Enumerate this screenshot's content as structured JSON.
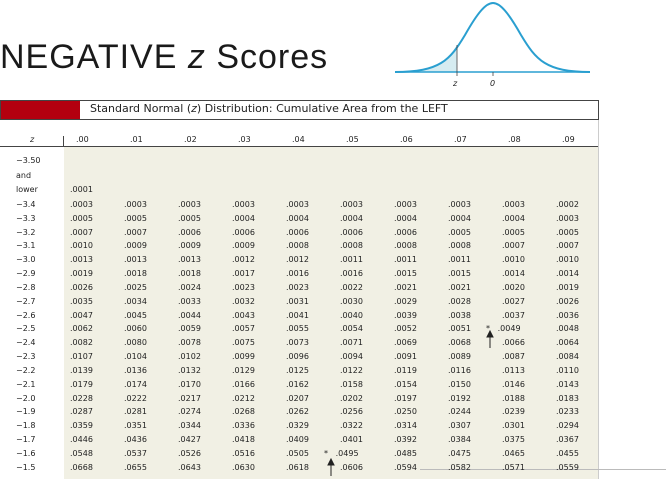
{
  "title": {
    "prefix": "NEGATIVE",
    "variable": "z",
    "suffix": "Scores"
  },
  "curve": {
    "z_label": "z",
    "zero_label": "0"
  },
  "table": {
    "caption": [
      "Standard Normal (",
      "z",
      ") Distribution: Cumulative Area from the LEFT"
    ],
    "headers": [
      "z",
      ".00",
      ".01",
      ".02",
      ".03",
      ".04",
      ".05",
      ".06",
      ".07",
      ".08",
      ".09"
    ],
    "rows": [
      {
        "z": [
          "−3.50",
          "and",
          "lower"
        ],
        "cells": [
          ".0001"
        ]
      },
      {
        "z": "−3.4",
        "cells": [
          ".0003",
          ".0003",
          ".0003",
          ".0003",
          ".0003",
          ".0003",
          ".0003",
          ".0003",
          ".0003",
          ".0002"
        ]
      },
      {
        "z": "−3.3",
        "cells": [
          ".0005",
          ".0005",
          ".0005",
          ".0004",
          ".0004",
          ".0004",
          ".0004",
          ".0004",
          ".0004",
          ".0003"
        ]
      },
      {
        "z": "−3.2",
        "cells": [
          ".0007",
          ".0007",
          ".0006",
          ".0006",
          ".0006",
          ".0006",
          ".0006",
          ".0005",
          ".0005",
          ".0005"
        ]
      },
      {
        "z": "−3.1",
        "cells": [
          ".0010",
          ".0009",
          ".0009",
          ".0009",
          ".0008",
          ".0008",
          ".0008",
          ".0008",
          ".0007",
          ".0007"
        ]
      },
      {
        "z": "−3.0",
        "cells": [
          ".0013",
          ".0013",
          ".0013",
          ".0012",
          ".0012",
          ".0011",
          ".0011",
          ".0011",
          ".0010",
          ".0010"
        ]
      },
      {
        "z": "−2.9",
        "cells": [
          ".0019",
          ".0018",
          ".0018",
          ".0017",
          ".0016",
          ".0016",
          ".0015",
          ".0015",
          ".0014",
          ".0014"
        ]
      },
      {
        "z": "−2.8",
        "cells": [
          ".0026",
          ".0025",
          ".0024",
          ".0023",
          ".0023",
          ".0022",
          ".0021",
          ".0021",
          ".0020",
          ".0019"
        ]
      },
      {
        "z": "−2.7",
        "cells": [
          ".0035",
          ".0034",
          ".0033",
          ".0032",
          ".0031",
          ".0030",
          ".0029",
          ".0028",
          ".0027",
          ".0026"
        ]
      },
      {
        "z": "−2.6",
        "cells": [
          ".0047",
          ".0045",
          ".0044",
          ".0043",
          ".0041",
          ".0040",
          ".0039",
          ".0038",
          ".0037",
          ".0036"
        ]
      },
      {
        "z": "−2.5",
        "cells": [
          ".0062",
          ".0060",
          ".0059",
          ".0057",
          ".0055",
          ".0054",
          ".0052",
          ".0051",
          "*   .0049",
          ".0048"
        ]
      },
      {
        "z": "−2.4",
        "cells": [
          ".0082",
          ".0080",
          ".0078",
          ".0075",
          ".0073",
          ".0071",
          ".0069",
          ".0068",
          ".0066",
          ".0064"
        ]
      },
      {
        "z": "−2.3",
        "cells": [
          ".0107",
          ".0104",
          ".0102",
          ".0099",
          ".0096",
          ".0094",
          ".0091",
          ".0089",
          ".0087",
          ".0084"
        ]
      },
      {
        "z": "−2.2",
        "cells": [
          ".0139",
          ".0136",
          ".0132",
          ".0129",
          ".0125",
          ".0122",
          ".0119",
          ".0116",
          ".0113",
          ".0110"
        ]
      },
      {
        "z": "−2.1",
        "cells": [
          ".0179",
          ".0174",
          ".0170",
          ".0166",
          ".0162",
          ".0158",
          ".0154",
          ".0150",
          ".0146",
          ".0143"
        ]
      },
      {
        "z": "−2.0",
        "cells": [
          ".0228",
          ".0222",
          ".0217",
          ".0212",
          ".0207",
          ".0202",
          ".0197",
          ".0192",
          ".0188",
          ".0183"
        ]
      },
      {
        "z": "−1.9",
        "cells": [
          ".0287",
          ".0281",
          ".0274",
          ".0268",
          ".0262",
          ".0256",
          ".0250",
          ".0244",
          ".0239",
          ".0233"
        ]
      },
      {
        "z": "−1.8",
        "cells": [
          ".0359",
          ".0351",
          ".0344",
          ".0336",
          ".0329",
          ".0322",
          ".0314",
          ".0307",
          ".0301",
          ".0294"
        ]
      },
      {
        "z": "−1.7",
        "cells": [
          ".0446",
          ".0436",
          ".0427",
          ".0418",
          ".0409",
          ".0401",
          ".0392",
          ".0384",
          ".0375",
          ".0367"
        ]
      },
      {
        "z": "−1.6",
        "cells": [
          ".0548",
          ".0537",
          ".0526",
          ".0516",
          ".0505",
          "*   .0495",
          ".0485",
          ".0475",
          ".0465",
          ".0455"
        ]
      },
      {
        "z": "−1.5",
        "cells": [
          ".0668",
          ".0655",
          ".0643",
          ".0630",
          ".0618",
          ".0606",
          ".0594",
          ".0582",
          ".0571",
          ".0559"
        ]
      }
    ]
  }
}
